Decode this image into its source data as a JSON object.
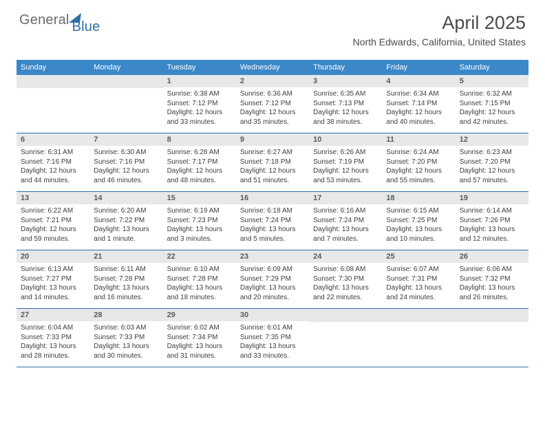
{
  "brand": {
    "general": "General",
    "blue": "Blue"
  },
  "title": {
    "month": "April 2025",
    "location": "North Edwards, California, United States"
  },
  "dow": [
    "Sunday",
    "Monday",
    "Tuesday",
    "Wednesday",
    "Thursday",
    "Friday",
    "Saturday"
  ],
  "colors": {
    "header_bg": "#3b87c8",
    "rule": "#2f6fa8",
    "daynum_bg": "#e7e8e9",
    "text": "#3d3d3d"
  },
  "weeks": [
    [
      null,
      null,
      {
        "n": "1",
        "sunrise": "6:38 AM",
        "sunset": "7:12 PM",
        "daylight": "12 hours and 33 minutes."
      },
      {
        "n": "2",
        "sunrise": "6:36 AM",
        "sunset": "7:12 PM",
        "daylight": "12 hours and 35 minutes."
      },
      {
        "n": "3",
        "sunrise": "6:35 AM",
        "sunset": "7:13 PM",
        "daylight": "12 hours and 38 minutes."
      },
      {
        "n": "4",
        "sunrise": "6:34 AM",
        "sunset": "7:14 PM",
        "daylight": "12 hours and 40 minutes."
      },
      {
        "n": "5",
        "sunrise": "6:32 AM",
        "sunset": "7:15 PM",
        "daylight": "12 hours and 42 minutes."
      }
    ],
    [
      {
        "n": "6",
        "sunrise": "6:31 AM",
        "sunset": "7:16 PM",
        "daylight": "12 hours and 44 minutes."
      },
      {
        "n": "7",
        "sunrise": "6:30 AM",
        "sunset": "7:16 PM",
        "daylight": "12 hours and 46 minutes."
      },
      {
        "n": "8",
        "sunrise": "6:28 AM",
        "sunset": "7:17 PM",
        "daylight": "12 hours and 48 minutes."
      },
      {
        "n": "9",
        "sunrise": "6:27 AM",
        "sunset": "7:18 PM",
        "daylight": "12 hours and 51 minutes."
      },
      {
        "n": "10",
        "sunrise": "6:26 AM",
        "sunset": "7:19 PM",
        "daylight": "12 hours and 53 minutes."
      },
      {
        "n": "11",
        "sunrise": "6:24 AM",
        "sunset": "7:20 PM",
        "daylight": "12 hours and 55 minutes."
      },
      {
        "n": "12",
        "sunrise": "6:23 AM",
        "sunset": "7:20 PM",
        "daylight": "12 hours and 57 minutes."
      }
    ],
    [
      {
        "n": "13",
        "sunrise": "6:22 AM",
        "sunset": "7:21 PM",
        "daylight": "12 hours and 59 minutes."
      },
      {
        "n": "14",
        "sunrise": "6:20 AM",
        "sunset": "7:22 PM",
        "daylight": "13 hours and 1 minute."
      },
      {
        "n": "15",
        "sunrise": "6:19 AM",
        "sunset": "7:23 PM",
        "daylight": "13 hours and 3 minutes."
      },
      {
        "n": "16",
        "sunrise": "6:18 AM",
        "sunset": "7:24 PM",
        "daylight": "13 hours and 5 minutes."
      },
      {
        "n": "17",
        "sunrise": "6:16 AM",
        "sunset": "7:24 PM",
        "daylight": "13 hours and 7 minutes."
      },
      {
        "n": "18",
        "sunrise": "6:15 AM",
        "sunset": "7:25 PM",
        "daylight": "13 hours and 10 minutes."
      },
      {
        "n": "19",
        "sunrise": "6:14 AM",
        "sunset": "7:26 PM",
        "daylight": "13 hours and 12 minutes."
      }
    ],
    [
      {
        "n": "20",
        "sunrise": "6:13 AM",
        "sunset": "7:27 PM",
        "daylight": "13 hours and 14 minutes."
      },
      {
        "n": "21",
        "sunrise": "6:11 AM",
        "sunset": "7:28 PM",
        "daylight": "13 hours and 16 minutes."
      },
      {
        "n": "22",
        "sunrise": "6:10 AM",
        "sunset": "7:28 PM",
        "daylight": "13 hours and 18 minutes."
      },
      {
        "n": "23",
        "sunrise": "6:09 AM",
        "sunset": "7:29 PM",
        "daylight": "13 hours and 20 minutes."
      },
      {
        "n": "24",
        "sunrise": "6:08 AM",
        "sunset": "7:30 PM",
        "daylight": "13 hours and 22 minutes."
      },
      {
        "n": "25",
        "sunrise": "6:07 AM",
        "sunset": "7:31 PM",
        "daylight": "13 hours and 24 minutes."
      },
      {
        "n": "26",
        "sunrise": "6:06 AM",
        "sunset": "7:32 PM",
        "daylight": "13 hours and 26 minutes."
      }
    ],
    [
      {
        "n": "27",
        "sunrise": "6:04 AM",
        "sunset": "7:33 PM",
        "daylight": "13 hours and 28 minutes."
      },
      {
        "n": "28",
        "sunrise": "6:03 AM",
        "sunset": "7:33 PM",
        "daylight": "13 hours and 30 minutes."
      },
      {
        "n": "29",
        "sunrise": "6:02 AM",
        "sunset": "7:34 PM",
        "daylight": "13 hours and 31 minutes."
      },
      {
        "n": "30",
        "sunrise": "6:01 AM",
        "sunset": "7:35 PM",
        "daylight": "13 hours and 33 minutes."
      },
      null,
      null,
      null
    ]
  ],
  "labels": {
    "sunrise": "Sunrise: ",
    "sunset": "Sunset: ",
    "daylight": "Daylight: "
  }
}
